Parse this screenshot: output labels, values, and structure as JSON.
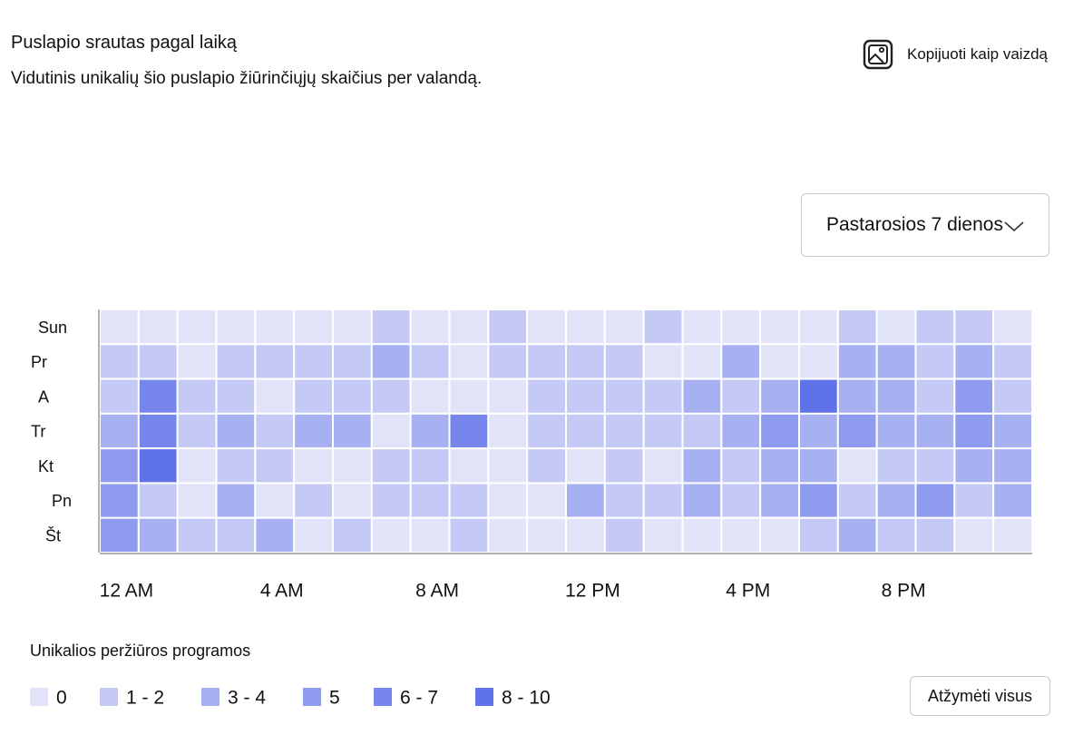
{
  "header": {
    "title": "Puslapio srautas pagal laiką",
    "subtitle": "Vidutinis unikalių šio puslapio žiūrinčiųjų skaičius per valandą.",
    "copy_button": "Kopijuoti kaip vaizdą",
    "range_dropdown": "Pastarosios 7 dienos"
  },
  "chart_data": {
    "type": "heatmap",
    "rows": [
      "Sun",
      "Pr",
      "A",
      "Tr",
      "Kt",
      "Pn",
      "Št"
    ],
    "categories": [
      "12 AM",
      null,
      null,
      null,
      "4 AM",
      null,
      null,
      null,
      "8 AM",
      null,
      null,
      null,
      "12 PM",
      null,
      null,
      null,
      "4 PM",
      null,
      null,
      null,
      "8 PM",
      null,
      null,
      null
    ],
    "values": [
      [
        0,
        0,
        0,
        0,
        0,
        0,
        0,
        2,
        0,
        0,
        2,
        0,
        0,
        0,
        2,
        0,
        0,
        0,
        0,
        2,
        0,
        2,
        2,
        0
      ],
      [
        2,
        2,
        0,
        2,
        2,
        2,
        2,
        4,
        2,
        0,
        2,
        2,
        2,
        2,
        0,
        0,
        4,
        0,
        0,
        4,
        4,
        2,
        4,
        2
      ],
      [
        2,
        7,
        2,
        2,
        0,
        2,
        2,
        2,
        0,
        0,
        0,
        2,
        2,
        2,
        2,
        4,
        2,
        4,
        9,
        4,
        4,
        2,
        5,
        2
      ],
      [
        4,
        7,
        2,
        4,
        2,
        4,
        4,
        0,
        4,
        7,
        0,
        2,
        2,
        2,
        2,
        2,
        4,
        5,
        4,
        5,
        4,
        4,
        5,
        4
      ],
      [
        5,
        9,
        0,
        2,
        2,
        0,
        0,
        2,
        2,
        0,
        0,
        2,
        0,
        2,
        0,
        4,
        2,
        4,
        4,
        0,
        2,
        2,
        4,
        4
      ],
      [
        5,
        2,
        0,
        4,
        0,
        2,
        0,
        2,
        2,
        2,
        0,
        0,
        4,
        2,
        2,
        4,
        2,
        4,
        5,
        2,
        4,
        5,
        2,
        4
      ],
      [
        5,
        4,
        2,
        2,
        4,
        0,
        2,
        0,
        0,
        2,
        0,
        0,
        0,
        2,
        0,
        0,
        0,
        0,
        2,
        4,
        2,
        2,
        0,
        0
      ]
    ],
    "legend": {
      "title": "Unikalios peržiūros programos",
      "items": [
        {
          "label": "0",
          "min": 0,
          "max": 0,
          "color": "#e1e4f9"
        },
        {
          "label": "1 - 2",
          "min": 1,
          "max": 2,
          "color": "#c4caf5"
        },
        {
          "label": "3 - 4",
          "min": 3,
          "max": 4,
          "color": "#a7b1f1"
        },
        {
          "label": "5",
          "min": 5,
          "max": 5,
          "color": "#8e9bef"
        },
        {
          "label": "6 - 7",
          "min": 6,
          "max": 7,
          "color": "#7786ec"
        },
        {
          "label": "8 - 10",
          "min": 8,
          "max": 10,
          "color": "#5f72e8"
        }
      ]
    }
  },
  "footer": {
    "clear_button": "Atžymėti visus"
  }
}
